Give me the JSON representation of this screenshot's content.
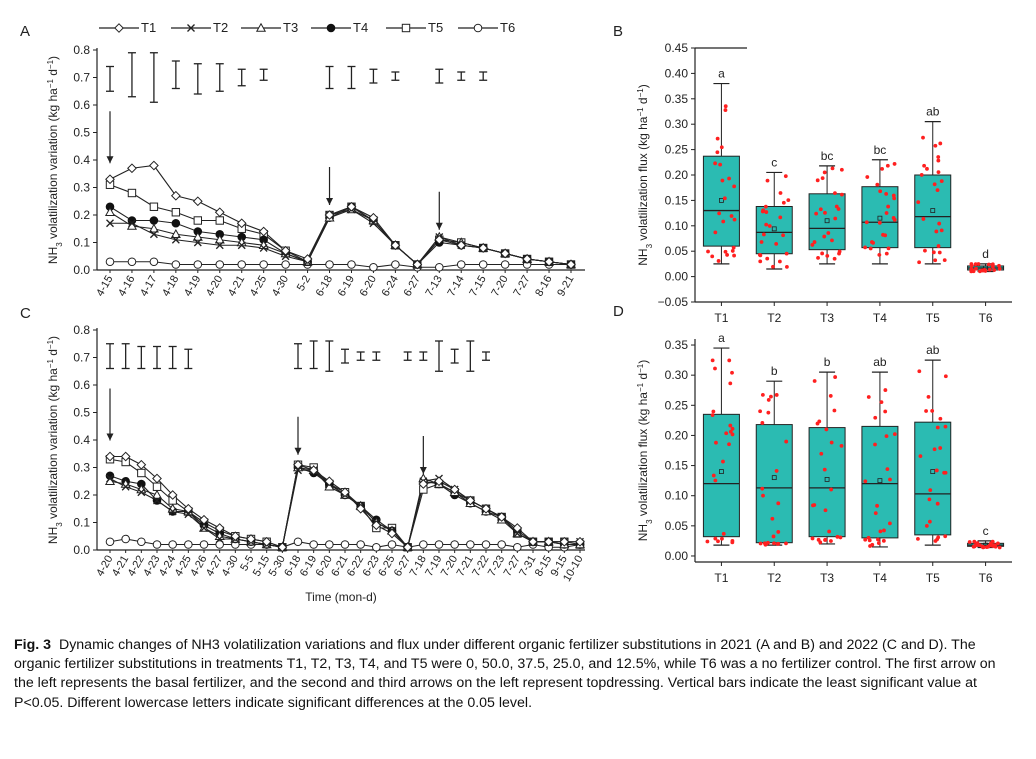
{
  "caption": {
    "label": "Fig. 3",
    "text": "Dynamic changes of NH3 volatilization variations and flux under different organic fertilizer substitutions in 2021 (A and B) and 2022 (C and D).  The organic fertilizer substitutions in treatments T1, T2, T3, T4, and T5 were 0, 50.0, 37.5, 25.0, and 12.5%, while T6 was a no fertilizer control.  The first arrow on the left represents the basal fertilizer, and the second and third arrows on the left represent topdressing.  Vertical bars indicate the least significant value at P<0.05.  Different lowercase letters indicate significant differences at the 0.05 level."
  },
  "legend": [
    "T1",
    "T2",
    "T3",
    "T4",
    "T5",
    "T6"
  ],
  "chart_data": [
    {
      "panel": "A",
      "type": "line",
      "ylabel": "NH3 volatilization variation (kg ha-1 d-1)",
      "ylim": [
        0,
        0.8
      ],
      "yticks": [
        "0.0",
        "0.1",
        "0.2",
        "0.3",
        "0.4",
        "0.5",
        "0.6",
        "0.7",
        "0.8"
      ],
      "categories": [
        "4-15",
        "4-16",
        "4-17",
        "4-18",
        "4-19",
        "4-20",
        "4-21",
        "4-25",
        "4-30",
        "5-2",
        "6-18",
        "6-19",
        "6-20",
        "6-24",
        "6-27",
        "7-13",
        "7-14",
        "7-15",
        "7-20",
        "7-27",
        "8-16",
        "9-21"
      ],
      "series": [
        {
          "name": "T1",
          "values": [
            0.33,
            0.37,
            0.38,
            0.27,
            0.25,
            0.21,
            0.17,
            0.14,
            0.07,
            0.04,
            0.2,
            0.23,
            0.19,
            0.09,
            0.02,
            0.11,
            0.09,
            0.08,
            0.06,
            0.04,
            0.03,
            0.02
          ]
        },
        {
          "name": "T2",
          "values": [
            0.17,
            0.17,
            0.13,
            0.11,
            0.1,
            0.09,
            0.09,
            0.08,
            0.05,
            0.03,
            0.2,
            0.22,
            0.17,
            0.09,
            0.02,
            0.12,
            0.09,
            0.08,
            0.06,
            0.04,
            0.03,
            0.02
          ]
        },
        {
          "name": "T3",
          "values": [
            0.21,
            0.16,
            0.15,
            0.13,
            0.12,
            0.11,
            0.1,
            0.09,
            0.06,
            0.03,
            0.19,
            0.22,
            0.18,
            0.09,
            0.02,
            0.12,
            0.1,
            0.08,
            0.06,
            0.04,
            0.03,
            0.02
          ]
        },
        {
          "name": "T4",
          "values": [
            0.23,
            0.18,
            0.18,
            0.17,
            0.14,
            0.13,
            0.12,
            0.11,
            0.06,
            0.03,
            0.19,
            0.23,
            0.18,
            0.09,
            0.02,
            0.1,
            0.09,
            0.08,
            0.06,
            0.04,
            0.03,
            0.02
          ]
        },
        {
          "name": "T5",
          "values": [
            0.31,
            0.28,
            0.23,
            0.21,
            0.18,
            0.18,
            0.15,
            0.13,
            0.07,
            0.03,
            0.2,
            0.23,
            0.18,
            0.09,
            0.02,
            0.11,
            0.1,
            0.08,
            0.06,
            0.04,
            0.03,
            0.02
          ]
        },
        {
          "name": "T6",
          "values": [
            0.03,
            0.03,
            0.03,
            0.02,
            0.02,
            0.02,
            0.02,
            0.02,
            0.02,
            0.02,
            0.02,
            0.02,
            0.01,
            0.02,
            0.01,
            0.01,
            0.02,
            0.02,
            0.02,
            0.02,
            0.02,
            0.02
          ]
        }
      ],
      "lsd_bars": [
        {
          "index": 0,
          "low": 0.65,
          "high": 0.74
        },
        {
          "index": 1,
          "low": 0.63,
          "high": 0.79
        },
        {
          "index": 2,
          "low": 0.61,
          "high": 0.79
        },
        {
          "index": 3,
          "low": 0.66,
          "high": 0.76
        },
        {
          "index": 4,
          "low": 0.64,
          "high": 0.75
        },
        {
          "index": 5,
          "low": 0.65,
          "high": 0.75
        },
        {
          "index": 6,
          "low": 0.67,
          "high": 0.73
        },
        {
          "index": 7,
          "low": 0.69,
          "high": 0.73
        },
        {
          "index": 10,
          "low": 0.66,
          "high": 0.74
        },
        {
          "index": 11,
          "low": 0.66,
          "high": 0.74
        },
        {
          "index": 12,
          "low": 0.68,
          "high": 0.73
        },
        {
          "index": 13,
          "low": 0.69,
          "high": 0.72
        },
        {
          "index": 15,
          "low": 0.68,
          "high": 0.73
        },
        {
          "index": 16,
          "low": 0.69,
          "high": 0.72
        },
        {
          "index": 17,
          "low": 0.69,
          "high": 0.72
        }
      ],
      "arrows": [
        0,
        10,
        15
      ]
    },
    {
      "panel": "B",
      "type": "box",
      "ylabel": "NH3 volatilization flux (kg ha-1 d-1)",
      "ylim": [
        -0.05,
        0.45
      ],
      "yticks": [
        "−0.05",
        "0.00",
        "0.05",
        "0.10",
        "0.15",
        "0.20",
        "0.25",
        "0.30",
        "0.35",
        "0.40",
        "0.45"
      ],
      "categories": [
        "T1",
        "T2",
        "T3",
        "T4",
        "T5",
        "T6"
      ],
      "boxes": [
        {
          "name": "T1",
          "min": 0.025,
          "q1": 0.06,
          "median": 0.13,
          "q3": 0.237,
          "max": 0.38,
          "mean": 0.15,
          "letter": "a"
        },
        {
          "name": "T2",
          "min": 0.015,
          "q1": 0.045,
          "median": 0.087,
          "q3": 0.138,
          "max": 0.205,
          "mean": 0.094,
          "letter": "c"
        },
        {
          "name": "T3",
          "min": 0.025,
          "q1": 0.053,
          "median": 0.095,
          "q3": 0.163,
          "max": 0.218,
          "mean": 0.11,
          "letter": "bc"
        },
        {
          "name": "T4",
          "min": 0.025,
          "q1": 0.057,
          "median": 0.107,
          "q3": 0.177,
          "max": 0.23,
          "mean": 0.115,
          "letter": "bc"
        },
        {
          "name": "T5",
          "min": 0.025,
          "q1": 0.057,
          "median": 0.118,
          "q3": 0.2,
          "max": 0.305,
          "mean": 0.13,
          "letter": "ab"
        },
        {
          "name": "T6",
          "min": 0.01,
          "q1": 0.013,
          "median": 0.017,
          "q3": 0.021,
          "max": 0.025,
          "mean": 0.017,
          "letter": "d"
        }
      ]
    },
    {
      "panel": "C",
      "type": "line",
      "ylabel": "NH3 volatilization variation (kg ha-1 d-1)",
      "xlabel": "Time (mon-d)",
      "ylim": [
        0,
        0.8
      ],
      "yticks": [
        "0.0",
        "0.1",
        "0.2",
        "0.3",
        "0.4",
        "0.5",
        "0.6",
        "0.7",
        "0.8"
      ],
      "categories": [
        "4-20",
        "4-21",
        "4-22",
        "4-23",
        "4-24",
        "4-25",
        "4-26",
        "4-27",
        "4-30",
        "5-5",
        "5-15",
        "5-30",
        "6-18",
        "6-19",
        "6-20",
        "6-21",
        "6-22",
        "6-23",
        "6-25",
        "6-27",
        "7-18",
        "7-19",
        "7-20",
        "7-21",
        "7-22",
        "7-23",
        "7-27",
        "7-31",
        "8-15",
        "9-15",
        "10-10"
      ],
      "series": [
        {
          "name": "T1",
          "values": [
            0.34,
            0.34,
            0.31,
            0.26,
            0.2,
            0.15,
            0.11,
            0.08,
            0.05,
            0.04,
            0.03,
            0.01,
            0.31,
            0.29,
            0.25,
            0.21,
            0.15,
            0.09,
            0.06,
            0.01,
            0.24,
            0.25,
            0.22,
            0.18,
            0.15,
            0.12,
            0.08,
            0.03,
            0.03,
            0.03,
            0.03
          ]
        },
        {
          "name": "T2",
          "values": [
            0.26,
            0.23,
            0.21,
            0.18,
            0.14,
            0.13,
            0.08,
            0.04,
            0.04,
            0.03,
            0.02,
            0.01,
            0.29,
            0.29,
            0.24,
            0.2,
            0.16,
            0.1,
            0.07,
            0.01,
            0.25,
            0.26,
            0.22,
            0.18,
            0.15,
            0.12,
            0.06,
            0.03,
            0.03,
            0.03,
            0.03
          ]
        },
        {
          "name": "T3",
          "values": [
            0.25,
            0.24,
            0.22,
            0.2,
            0.15,
            0.14,
            0.08,
            0.05,
            0.04,
            0.03,
            0.02,
            0.01,
            0.3,
            0.29,
            0.23,
            0.2,
            0.16,
            0.1,
            0.07,
            0.01,
            0.26,
            0.24,
            0.21,
            0.17,
            0.14,
            0.11,
            0.06,
            0.03,
            0.03,
            0.02,
            0.02
          ]
        },
        {
          "name": "T4",
          "values": [
            0.27,
            0.25,
            0.24,
            0.18,
            0.14,
            0.14,
            0.09,
            0.06,
            0.04,
            0.03,
            0.02,
            0.01,
            0.3,
            0.28,
            0.24,
            0.2,
            0.16,
            0.11,
            0.07,
            0.01,
            0.25,
            0.24,
            0.2,
            0.17,
            0.14,
            0.12,
            0.07,
            0.03,
            0.03,
            0.02,
            0.02
          ]
        },
        {
          "name": "T5",
          "values": [
            0.33,
            0.32,
            0.28,
            0.23,
            0.18,
            0.14,
            0.1,
            0.07,
            0.05,
            0.04,
            0.03,
            0.01,
            0.31,
            0.3,
            0.24,
            0.21,
            0.16,
            0.08,
            0.08,
            0.01,
            0.22,
            0.24,
            0.21,
            0.18,
            0.15,
            0.12,
            0.06,
            0.03,
            0.03,
            0.03,
            0.02
          ]
        },
        {
          "name": "T6",
          "values": [
            0.03,
            0.04,
            0.03,
            0.02,
            0.02,
            0.02,
            0.02,
            0.02,
            0.02,
            0.02,
            0.02,
            0.01,
            0.03,
            0.02,
            0.02,
            0.02,
            0.02,
            0.01,
            0.02,
            0.01,
            0.02,
            0.02,
            0.02,
            0.02,
            0.02,
            0.02,
            0.01,
            0.02,
            0.01,
            0.01,
            0.02
          ]
        }
      ],
      "lsd_bars": [
        {
          "index": 0,
          "low": 0.66,
          "high": 0.75
        },
        {
          "index": 1,
          "low": 0.66,
          "high": 0.75
        },
        {
          "index": 2,
          "low": 0.66,
          "high": 0.74
        },
        {
          "index": 3,
          "low": 0.66,
          "high": 0.74
        },
        {
          "index": 4,
          "low": 0.66,
          "high": 0.74
        },
        {
          "index": 5,
          "low": 0.66,
          "high": 0.73
        },
        {
          "index": 12,
          "low": 0.66,
          "high": 0.75
        },
        {
          "index": 13,
          "low": 0.66,
          "high": 0.76
        },
        {
          "index": 14,
          "low": 0.65,
          "high": 0.76
        },
        {
          "index": 15,
          "low": 0.68,
          "high": 0.73
        },
        {
          "index": 16,
          "low": 0.69,
          "high": 0.72
        },
        {
          "index": 17,
          "low": 0.69,
          "high": 0.72
        },
        {
          "index": 19,
          "low": 0.69,
          "high": 0.72
        },
        {
          "index": 20,
          "low": 0.69,
          "high": 0.72
        },
        {
          "index": 21,
          "low": 0.65,
          "high": 0.76
        },
        {
          "index": 22,
          "low": 0.68,
          "high": 0.73
        },
        {
          "index": 23,
          "low": 0.65,
          "high": 0.76
        },
        {
          "index": 24,
          "low": 0.69,
          "high": 0.72
        }
      ],
      "arrows": [
        0,
        12,
        20
      ]
    },
    {
      "panel": "D",
      "type": "box",
      "ylabel": "NH3 volatilization flux (kg ha-1 d-1)",
      "ylim": [
        -0.01,
        0.36
      ],
      "yticks": [
        "0.00",
        "0.05",
        "0.10",
        "0.15",
        "0.20",
        "0.25",
        "0.30",
        "0.35"
      ],
      "categories": [
        "T1",
        "T2",
        "T3",
        "T4",
        "T5",
        "T6"
      ],
      "boxes": [
        {
          "name": "T1",
          "min": 0.018,
          "q1": 0.032,
          "median": 0.12,
          "q3": 0.235,
          "max": 0.345,
          "mean": 0.14,
          "letter": "a"
        },
        {
          "name": "T2",
          "min": 0.018,
          "q1": 0.022,
          "median": 0.113,
          "q3": 0.218,
          "max": 0.29,
          "mean": 0.13,
          "letter": "b"
        },
        {
          "name": "T3",
          "min": 0.02,
          "q1": 0.032,
          "median": 0.113,
          "q3": 0.213,
          "max": 0.305,
          "mean": 0.127,
          "letter": "b"
        },
        {
          "name": "T4",
          "min": 0.015,
          "q1": 0.03,
          "median": 0.12,
          "q3": 0.215,
          "max": 0.305,
          "mean": 0.125,
          "letter": "ab"
        },
        {
          "name": "T5",
          "min": 0.018,
          "q1": 0.035,
          "median": 0.103,
          "q3": 0.222,
          "max": 0.325,
          "mean": 0.14,
          "letter": "ab"
        },
        {
          "name": "T6",
          "min": 0.014,
          "q1": 0.016,
          "median": 0.018,
          "q3": 0.021,
          "max": 0.025,
          "mean": 0.018,
          "letter": "c"
        }
      ]
    }
  ]
}
